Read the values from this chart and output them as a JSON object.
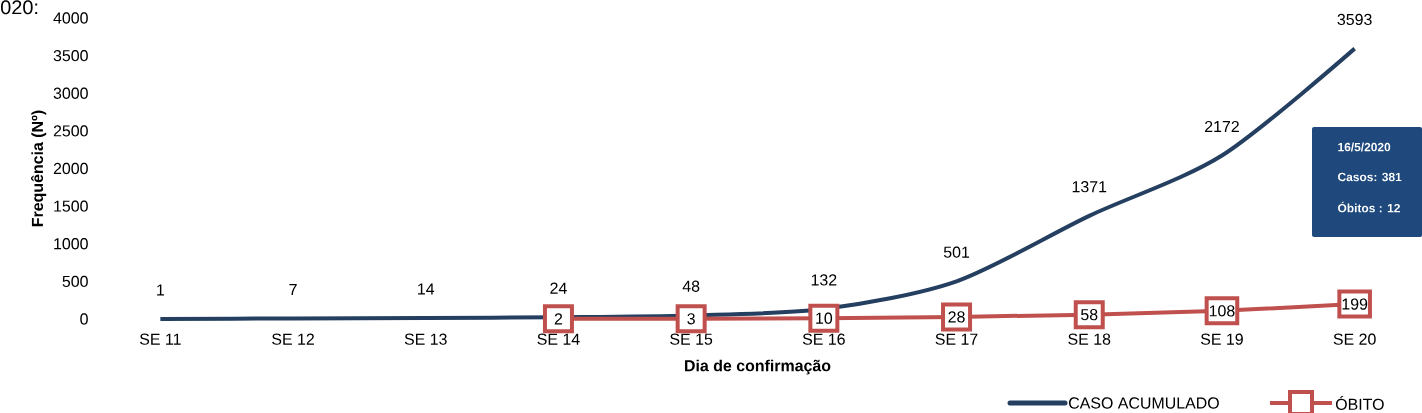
{
  "chart_data": {
    "type": "line",
    "xlabel": "Dia de confirmação",
    "ylabel": "Frequência (Nº)",
    "categories": [
      "SE 11",
      "SE 12",
      "SE 13",
      "SE 14",
      "SE 15",
      "SE 16",
      "SE 17",
      "SE 18",
      "SE 19",
      "SE 20"
    ],
    "series": [
      {
        "name": "CASO ACUMULADO",
        "color": "#243f60",
        "marker": "none",
        "values": [
          1,
          7,
          14,
          24,
          48,
          132,
          501,
          1371,
          2172,
          3593
        ]
      },
      {
        "name": "ÓBITO",
        "color": "#c0504d",
        "marker": "square",
        "values": [
          null,
          null,
          null,
          2,
          3,
          10,
          28,
          58,
          108,
          199
        ]
      }
    ],
    "ylim": [
      0,
      4000
    ],
    "yticks": [
      0,
      500,
      1000,
      1500,
      2000,
      2500,
      3000,
      3500,
      4000
    ],
    "grid": false,
    "legend": "bottom right",
    "data_labels": true,
    "line_style": "solid",
    "annotations": [
      "020:",
      "16/5/2020",
      "Casos:  381",
      "Óbitos : 12"
    ]
  }
}
